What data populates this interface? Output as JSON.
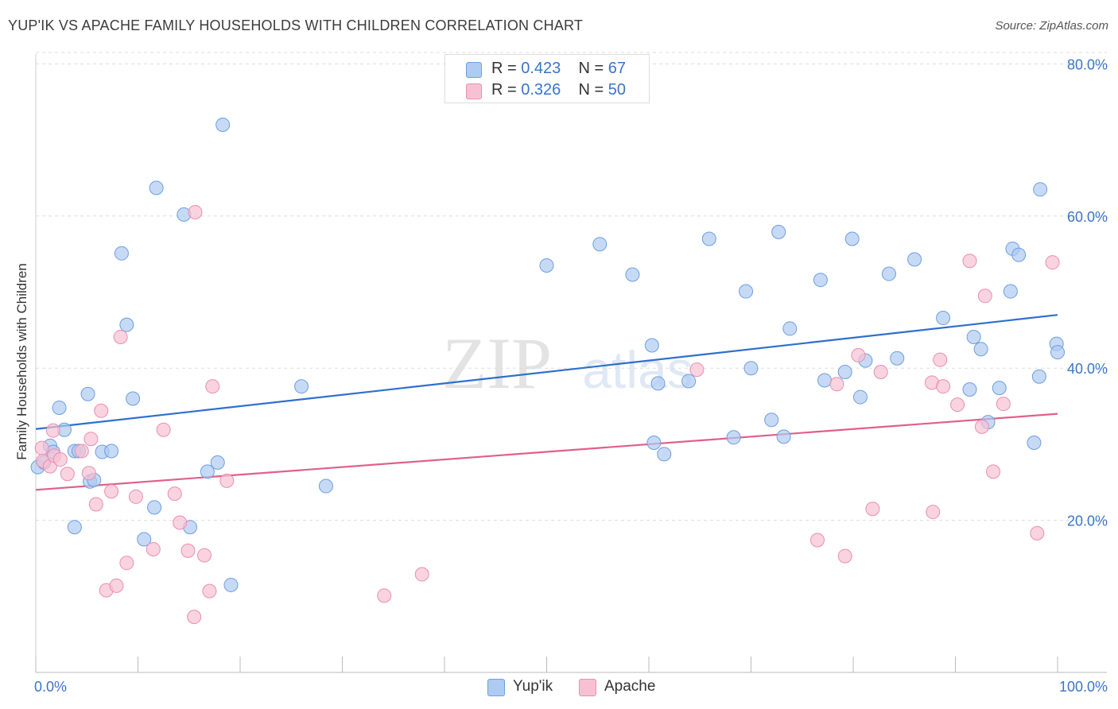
{
  "title": "YUP'IK VS APACHE FAMILY HOUSEHOLDS WITH CHILDREN CORRELATION CHART",
  "source": "Source: ZipAtlas.com",
  "watermark": {
    "zip": "ZIP",
    "atlas": "atlas"
  },
  "stats": [
    {
      "r_label": "R = ",
      "r_value": "0.423",
      "n_label": "N = ",
      "n_value": "67"
    },
    {
      "r_label": "R = ",
      "r_value": "0.326",
      "n_label": "N = ",
      "n_value": "50"
    }
  ],
  "colors": {
    "yupik_fill": "#aecbf2",
    "yupik_stroke": "#6d9fe0",
    "yupik_line": "#2f6fce",
    "apache_fill": "#f8c1d3",
    "apache_stroke": "#ea8fac",
    "apache_line": "#e0608a",
    "tick_label": "#3a74c9",
    "grid": "#dddddd"
  },
  "chart_data": {
    "type": "scatter",
    "title": "YUP'IK VS APACHE FAMILY HOUSEHOLDS WITH CHILDREN CORRELATION CHART",
    "xlabel": "",
    "ylabel": "Family Households with Children",
    "xlim": [
      0,
      100
    ],
    "ylim": [
      0,
      85
    ],
    "x_tick_labels": [
      "0.0%",
      "100.0%"
    ],
    "y_ticks": [
      20,
      40,
      60,
      80
    ],
    "y_tick_labels": [
      "20.0%",
      "40.0%",
      "60.0%",
      "80.0%"
    ],
    "grid": true,
    "legend_position": "bottom-center",
    "series": [
      {
        "name": "Yup'ik",
        "r": 0.423,
        "n": 67,
        "trend": {
          "x": [
            0,
            100
          ],
          "y": [
            32.0,
            47.0
          ]
        },
        "points": [
          [
            0.2,
            27.0
          ],
          [
            0.8,
            27.6
          ],
          [
            1.4,
            29.8
          ],
          [
            1.7,
            29.0
          ],
          [
            2.3,
            34.8
          ],
          [
            2.8,
            31.9
          ],
          [
            3.8,
            29.1
          ],
          [
            3.8,
            19.1
          ],
          [
            4.2,
            29.1
          ],
          [
            5.1,
            36.6
          ],
          [
            5.3,
            25.1
          ],
          [
            5.7,
            25.3
          ],
          [
            6.5,
            29.0
          ],
          [
            7.4,
            29.1
          ],
          [
            8.4,
            55.1
          ],
          [
            8.9,
            45.7
          ],
          [
            9.5,
            36.0
          ],
          [
            10.6,
            17.5
          ],
          [
            11.6,
            21.7
          ],
          [
            11.8,
            63.7
          ],
          [
            14.5,
            60.2
          ],
          [
            15.1,
            19.1
          ],
          [
            16.8,
            26.4
          ],
          [
            17.8,
            27.6
          ],
          [
            18.3,
            72.0
          ],
          [
            19.1,
            11.5
          ],
          [
            26.0,
            37.6
          ],
          [
            28.4,
            24.5
          ],
          [
            50.0,
            53.5
          ],
          [
            55.2,
            56.3
          ],
          [
            58.4,
            52.3
          ],
          [
            60.3,
            43.0
          ],
          [
            60.5,
            30.2
          ],
          [
            60.9,
            38.0
          ],
          [
            61.5,
            28.7
          ],
          [
            63.9,
            38.3
          ],
          [
            65.9,
            57.0
          ],
          [
            68.3,
            30.9
          ],
          [
            69.5,
            50.1
          ],
          [
            70.0,
            40.0
          ],
          [
            72.0,
            33.2
          ],
          [
            72.7,
            57.9
          ],
          [
            73.2,
            31.0
          ],
          [
            73.8,
            45.2
          ],
          [
            76.8,
            51.6
          ],
          [
            77.2,
            38.4
          ],
          [
            79.2,
            39.5
          ],
          [
            79.9,
            57.0
          ],
          [
            80.7,
            36.2
          ],
          [
            81.2,
            41.0
          ],
          [
            83.5,
            52.4
          ],
          [
            84.3,
            41.3
          ],
          [
            86.0,
            54.3
          ],
          [
            88.8,
            46.6
          ],
          [
            91.4,
            37.2
          ],
          [
            91.8,
            44.1
          ],
          [
            92.5,
            42.5
          ],
          [
            93.2,
            32.9
          ],
          [
            94.3,
            37.4
          ],
          [
            95.4,
            50.1
          ],
          [
            95.6,
            55.7
          ],
          [
            96.2,
            54.9
          ],
          [
            97.7,
            30.2
          ],
          [
            98.2,
            38.9
          ],
          [
            98.3,
            63.5
          ],
          [
            99.9,
            43.2
          ],
          [
            100.0,
            42.1
          ]
        ]
      },
      {
        "name": "Apache",
        "r": 0.326,
        "n": 50,
        "trend": {
          "x": [
            0,
            100
          ],
          "y": [
            24.0,
            34.0
          ]
        },
        "points": [
          [
            0.6,
            29.5
          ],
          [
            0.7,
            27.8
          ],
          [
            1.4,
            27.1
          ],
          [
            1.7,
            31.8
          ],
          [
            1.8,
            28.5
          ],
          [
            2.4,
            28.0
          ],
          [
            3.1,
            26.1
          ],
          [
            4.5,
            29.1
          ],
          [
            5.2,
            26.2
          ],
          [
            5.4,
            30.7
          ],
          [
            5.9,
            22.1
          ],
          [
            6.4,
            34.4
          ],
          [
            6.9,
            10.8
          ],
          [
            7.4,
            23.8
          ],
          [
            7.9,
            11.4
          ],
          [
            8.3,
            44.1
          ],
          [
            8.9,
            14.4
          ],
          [
            9.8,
            23.1
          ],
          [
            11.5,
            16.2
          ],
          [
            12.5,
            31.9
          ],
          [
            13.6,
            23.5
          ],
          [
            14.1,
            19.7
          ],
          [
            14.9,
            16.0
          ],
          [
            15.5,
            7.3
          ],
          [
            15.6,
            60.5
          ],
          [
            16.5,
            15.4
          ],
          [
            17.0,
            10.7
          ],
          [
            17.3,
            37.6
          ],
          [
            18.7,
            25.2
          ],
          [
            34.1,
            10.1
          ],
          [
            37.8,
            12.9
          ],
          [
            64.7,
            39.8
          ],
          [
            76.5,
            17.4
          ],
          [
            78.4,
            37.9
          ],
          [
            79.2,
            15.3
          ],
          [
            80.5,
            41.7
          ],
          [
            81.9,
            21.5
          ],
          [
            82.7,
            39.5
          ],
          [
            87.7,
            38.1
          ],
          [
            87.8,
            21.1
          ],
          [
            88.5,
            41.1
          ],
          [
            88.8,
            37.6
          ],
          [
            90.2,
            35.2
          ],
          [
            91.4,
            54.1
          ],
          [
            92.6,
            32.3
          ],
          [
            92.9,
            49.5
          ],
          [
            93.7,
            26.4
          ],
          [
            94.7,
            35.3
          ],
          [
            98.0,
            18.3
          ],
          [
            99.5,
            53.9
          ]
        ]
      }
    ]
  }
}
